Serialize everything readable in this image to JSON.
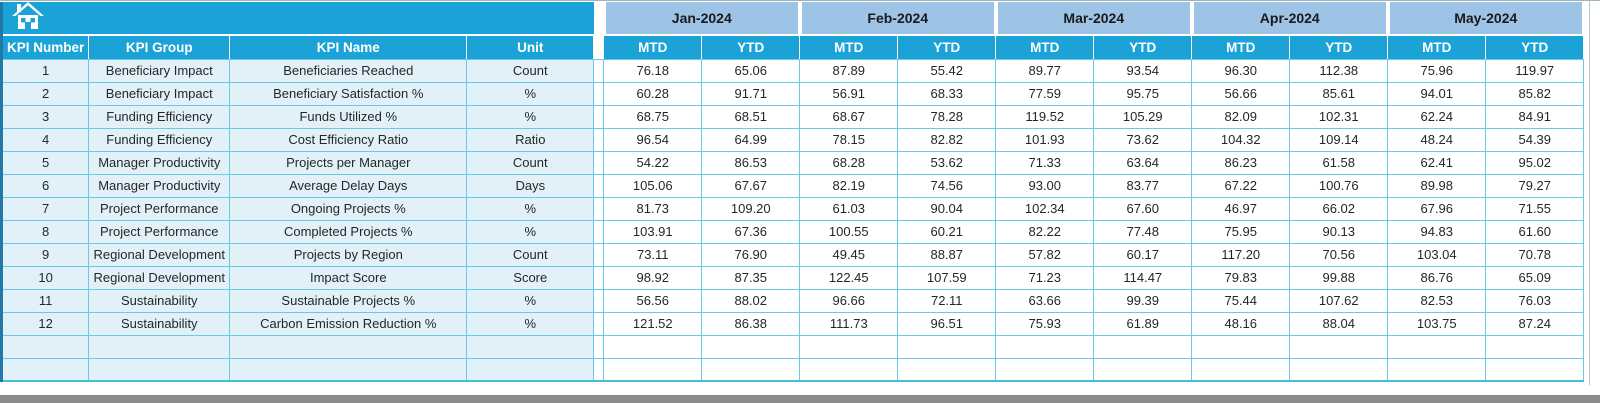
{
  "table": {
    "left_headers": [
      "KPI Number",
      "KPI Group",
      "KPI Name",
      "Unit"
    ],
    "months": [
      "Jan-2024",
      "Feb-2024",
      "Mar-2024",
      "Apr-2024",
      "May-2024"
    ],
    "sub_headers": [
      "MTD",
      "YTD"
    ],
    "rows": [
      {
        "number": "1",
        "group": "Beneficiary Impact",
        "name": "Beneficiaries Reached",
        "unit": "Count",
        "values": [
          "76.18",
          "65.06",
          "87.89",
          "55.42",
          "89.77",
          "93.54",
          "96.30",
          "112.38",
          "75.96",
          "119.97"
        ]
      },
      {
        "number": "2",
        "group": "Beneficiary Impact",
        "name": "Beneficiary Satisfaction %",
        "unit": "%",
        "values": [
          "60.28",
          "91.71",
          "56.91",
          "68.33",
          "77.59",
          "95.75",
          "56.66",
          "85.61",
          "94.01",
          "85.82"
        ]
      },
      {
        "number": "3",
        "group": "Funding Efficiency",
        "name": "Funds Utilized %",
        "unit": "%",
        "values": [
          "68.75",
          "68.51",
          "68.67",
          "78.28",
          "119.52",
          "105.29",
          "82.09",
          "102.31",
          "62.24",
          "84.91"
        ]
      },
      {
        "number": "4",
        "group": "Funding Efficiency",
        "name": "Cost Efficiency Ratio",
        "unit": "Ratio",
        "values": [
          "96.54",
          "64.99",
          "78.15",
          "82.82",
          "101.93",
          "73.62",
          "104.32",
          "109.14",
          "48.24",
          "54.39"
        ]
      },
      {
        "number": "5",
        "group": "Manager Productivity",
        "name": "Projects per Manager",
        "unit": "Count",
        "values": [
          "54.22",
          "86.53",
          "68.28",
          "53.62",
          "71.33",
          "63.64",
          "86.23",
          "61.58",
          "62.41",
          "95.02"
        ]
      },
      {
        "number": "6",
        "group": "Manager Productivity",
        "name": "Average Delay Days",
        "unit": "Days",
        "values": [
          "105.06",
          "67.67",
          "82.19",
          "74.56",
          "93.00",
          "83.77",
          "67.22",
          "100.76",
          "89.98",
          "79.27"
        ]
      },
      {
        "number": "7",
        "group": "Project Performance",
        "name": "Ongoing Projects %",
        "unit": "%",
        "values": [
          "81.73",
          "109.20",
          "61.03",
          "90.04",
          "102.34",
          "67.60",
          "46.97",
          "66.02",
          "67.96",
          "71.55"
        ]
      },
      {
        "number": "8",
        "group": "Project Performance",
        "name": "Completed Projects %",
        "unit": "%",
        "values": [
          "103.91",
          "67.36",
          "100.55",
          "60.21",
          "82.22",
          "77.48",
          "75.95",
          "90.13",
          "94.83",
          "61.60"
        ]
      },
      {
        "number": "9",
        "group": "Regional Development",
        "name": "Projects by Region",
        "unit": "Count",
        "values": [
          "73.11",
          "76.90",
          "49.45",
          "88.87",
          "57.82",
          "60.17",
          "117.20",
          "70.56",
          "103.04",
          "70.78"
        ]
      },
      {
        "number": "10",
        "group": "Regional Development",
        "name": "Impact Score",
        "unit": "Score",
        "values": [
          "98.92",
          "87.35",
          "122.45",
          "107.59",
          "71.23",
          "114.47",
          "79.83",
          "99.88",
          "86.76",
          "65.09"
        ]
      },
      {
        "number": "11",
        "group": "Sustainability",
        "name": "Sustainable Projects %",
        "unit": "%",
        "values": [
          "56.56",
          "88.02",
          "96.66",
          "72.11",
          "63.66",
          "99.39",
          "75.44",
          "107.62",
          "82.53",
          "76.03"
        ]
      },
      {
        "number": "12",
        "group": "Sustainability",
        "name": "Carbon Emission Reduction %",
        "unit": "%",
        "values": [
          "121.52",
          "86.38",
          "111.73",
          "96.51",
          "75.93",
          "61.89",
          "48.16",
          "88.04",
          "103.75",
          "87.24"
        ]
      }
    ],
    "empty_row_count": 2
  },
  "icons": {
    "home": "home-icon"
  },
  "colors": {
    "header_teal": "#1BA3D7",
    "month_header_blue": "#9DC3E6",
    "left_cell_bg": "#E2F1F8",
    "grid_border": "#6AC9E7",
    "table_left_edge": "#2279A6",
    "bottom_bar_gray": "#8C8C8C",
    "text_dark": "#262626",
    "header_text": "#FFFFFF"
  }
}
